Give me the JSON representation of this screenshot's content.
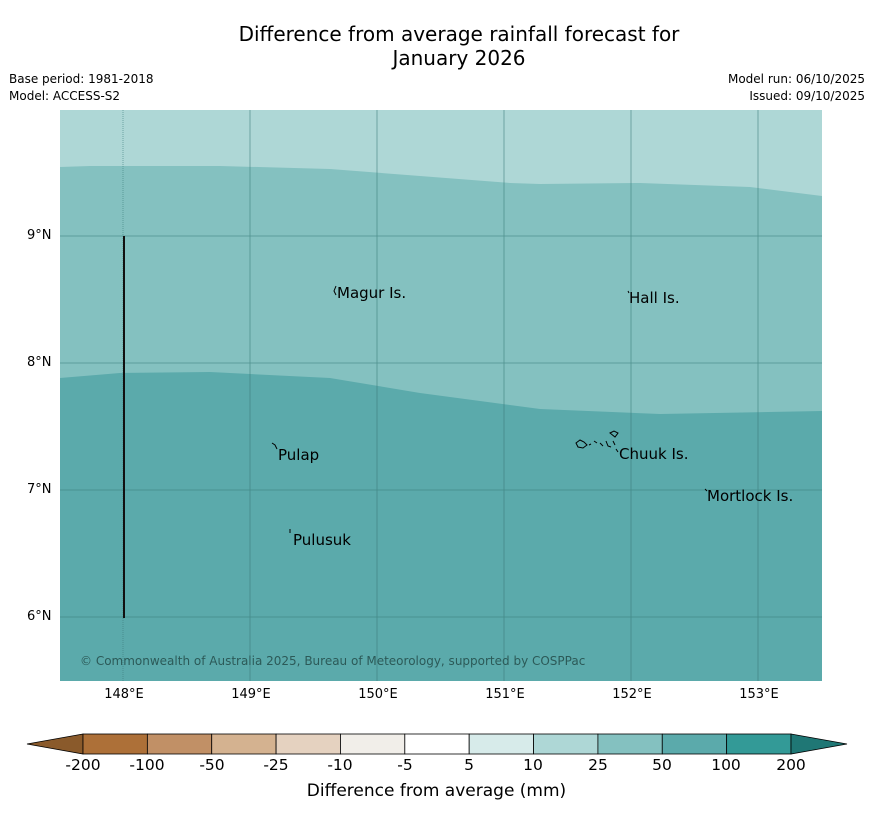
{
  "title": {
    "line1": "Difference from average rainfall forecast for",
    "line2": "January 2026"
  },
  "meta": {
    "base_period": "Base period: 1981-2018",
    "model": "Model: ACCESS-S2",
    "model_run": "Model run: 06/10/2025",
    "issued": "Issued: 09/10/2025"
  },
  "map": {
    "lat_labels": [
      "9°N",
      "8°N",
      "7°N",
      "6°N"
    ],
    "lon_labels": [
      "148°E",
      "149°E",
      "150°E",
      "151°E",
      "152°E",
      "153°E"
    ],
    "places": [
      "Magur Is.",
      "Hall Is.",
      "Pulap",
      "Chuuk Is.",
      "Mortlock Is.",
      "Pulusuk"
    ],
    "copyright": "© Commonwealth of Australia 2025, Bureau of Meteorology, supported by COSPPac",
    "band_colors": {
      "top": "#aed7d6",
      "middle": "#84c1c0",
      "bottom": "#5baaab"
    }
  },
  "colorbar": {
    "ticks": [
      "-200",
      "-100",
      "-50",
      "-25",
      "-10",
      "-5",
      "5",
      "10",
      "25",
      "50",
      "100",
      "200"
    ],
    "colors": [
      "#ad7038",
      "#c19066",
      "#d4b290",
      "#e5d2c0",
      "#f1eee9",
      "#ffffff",
      "#d7ebea",
      "#aed7d6",
      "#84c1c0",
      "#5baaab",
      "#339a97"
    ],
    "low_extend_color": "#8a5a2b",
    "high_extend_color": "#1f7775",
    "label": "Difference from average (mm)"
  }
}
